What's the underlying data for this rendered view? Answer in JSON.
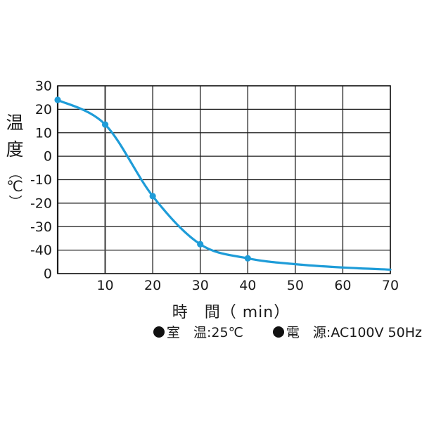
{
  "page": {
    "background": "#ffffff",
    "text_color": "#1a1a1a"
  },
  "chart_data": {
    "type": "line",
    "title": "",
    "xlabel": "時　間（ min）",
    "ylabel": "温度（℃）",
    "ylabel_vertical_chars": [
      "温",
      "度",
      "（",
      "℃",
      "）"
    ],
    "xlim": [
      0,
      70
    ],
    "ylim": [
      -50,
      30
    ],
    "grid": true,
    "grid_color": "#1a1a1a",
    "emphasized_gridline_color": "#4a4a4a",
    "x_ticks": [
      {
        "v": 10,
        "label": "10",
        "emphasized_line": true
      },
      {
        "v": 20,
        "label": "20"
      },
      {
        "v": 30,
        "label": "30"
      },
      {
        "v": 40,
        "label": "40"
      },
      {
        "v": 50,
        "label": "50"
      },
      {
        "v": 60,
        "label": "60"
      },
      {
        "v": 70,
        "label": "70"
      }
    ],
    "y_ticks": [
      {
        "v": 30,
        "label": "30"
      },
      {
        "v": 20,
        "label": "20"
      },
      {
        "v": 10,
        "label": "10"
      },
      {
        "v": 0,
        "label": "0"
      },
      {
        "v": -10,
        "label": "-10"
      },
      {
        "v": -20,
        "label": "-20"
      },
      {
        "v": -30,
        "label": "-30"
      },
      {
        "v": -40,
        "label": "-40"
      },
      {
        "v": -50,
        "label": "0"
      }
    ],
    "series": [
      {
        "name": "cooling-temperature-curve",
        "color": "#1E9CD8",
        "points": [
          {
            "x": 0,
            "y": 24,
            "marker": true
          },
          {
            "x": 10,
            "y": 13.5,
            "marker": true
          },
          {
            "x": 20,
            "y": -17,
            "marker": true
          },
          {
            "x": 30,
            "y": -37.5,
            "marker": true
          },
          {
            "x": 40,
            "y": -43.5,
            "marker": true
          },
          {
            "x": 50,
            "y": -46,
            "marker": false
          },
          {
            "x": 60,
            "y": -47.4,
            "marker": false
          },
          {
            "x": 70,
            "y": -48.3,
            "marker": false
          }
        ]
      }
    ]
  },
  "footnotes": [
    {
      "bullet": "black-circle",
      "label": "室　温:25℃"
    },
    {
      "bullet": "black-circle",
      "label": "電　源:AC100V 50Hz"
    }
  ]
}
